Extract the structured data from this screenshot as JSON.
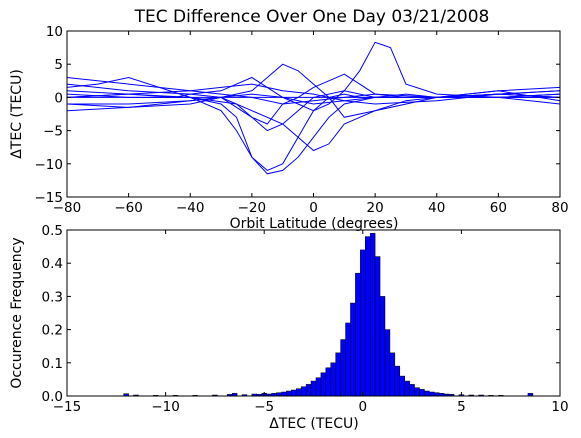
{
  "chart_data": [
    {
      "type": "line",
      "title": "TEC Difference Over One Day 03/21/2008",
      "xlabel": "Orbit Latitude (degrees)",
      "ylabel": "ΔTEC (TECU)",
      "xlim": [
        -80,
        80
      ],
      "ylim": [
        -15,
        10
      ],
      "xticks": [
        -80,
        -60,
        -40,
        -20,
        0,
        20,
        40,
        60,
        80
      ],
      "yticks": [
        10,
        5,
        0,
        -5,
        -10,
        -15
      ],
      "line_color": "#0000ff",
      "grid": false,
      "legend": "none",
      "series": [
        {
          "x": [
            -80,
            -60,
            -45,
            -40,
            -30,
            -25,
            -20,
            -15,
            -10,
            -5,
            0,
            5,
            10,
            15,
            20,
            25,
            30,
            40,
            60,
            80
          ],
          "y": [
            0,
            0.5,
            0,
            0.5,
            1,
            2,
            3,
            1.5,
            0,
            -1,
            -2,
            -1,
            1,
            4,
            8.3,
            7.5,
            2,
            0.5,
            0,
            0.5
          ]
        },
        {
          "x": [
            -80,
            -60,
            -40,
            -30,
            -25,
            -20,
            -15,
            -10,
            -5,
            0,
            5,
            10,
            15,
            20,
            30,
            40,
            60,
            80
          ],
          "y": [
            0.5,
            0,
            0,
            -1,
            -3,
            -9,
            -11,
            -10,
            -6,
            -2,
            0,
            0.5,
            0,
            0,
            0,
            0,
            0,
            0.5
          ]
        },
        {
          "x": [
            -80,
            -60,
            -40,
            -30,
            -25,
            -20,
            -15,
            -10,
            -5,
            0,
            5,
            10,
            20,
            40,
            60,
            80
          ],
          "y": [
            0,
            0,
            0,
            -2,
            -5,
            -9,
            -11.5,
            -11,
            -9,
            -6,
            -3,
            -1,
            0,
            0,
            0,
            0
          ]
        },
        {
          "x": [
            -80,
            -60,
            -40,
            -30,
            -20,
            -15,
            -10,
            -5,
            0,
            5,
            10,
            20,
            40,
            60,
            80
          ],
          "y": [
            -1,
            -1,
            -0.5,
            0,
            1,
            3,
            5,
            4,
            2,
            0,
            -3,
            -2,
            0,
            0,
            0
          ]
        },
        {
          "x": [
            -80,
            -60,
            -40,
            -30,
            -20,
            -15,
            -10,
            -5,
            0,
            5,
            10,
            15,
            20,
            30,
            40,
            60,
            80
          ],
          "y": [
            1,
            0.5,
            0,
            0,
            -3,
            -4,
            -1,
            0,
            1.5,
            2.5,
            3.5,
            2,
            0.5,
            0,
            0,
            0.5,
            1
          ]
        },
        {
          "x": [
            -80,
            -60,
            -40,
            -30,
            -20,
            -10,
            -5,
            0,
            5,
            10,
            20,
            30,
            40,
            60,
            80
          ],
          "y": [
            2,
            1,
            0.5,
            0,
            -2,
            -4,
            -6,
            -8,
            -7,
            -4,
            -2,
            -0.5,
            0,
            0.5,
            1
          ]
        },
        {
          "x": [
            -80,
            -70,
            -60,
            -40,
            -25,
            -20,
            -15,
            -10,
            -5,
            0,
            10,
            20,
            40,
            60,
            80
          ],
          "y": [
            1.5,
            2,
            3,
            0,
            -1,
            -3,
            -5,
            -4,
            -2,
            0,
            1,
            0,
            0,
            0.5,
            0
          ]
        },
        {
          "x": [
            -80,
            -60,
            -40,
            -30,
            -20,
            -10,
            0,
            10,
            20,
            30,
            40,
            60,
            80
          ],
          "y": [
            -1,
            -1.5,
            -1,
            0,
            0.5,
            0,
            -1,
            -0.5,
            0,
            0.5,
            0,
            1,
            -0.5
          ]
        },
        {
          "x": [
            -80,
            -60,
            -40,
            -30,
            -20,
            -10,
            0,
            10,
            20,
            40,
            60,
            80
          ],
          "y": [
            3,
            2,
            1,
            0.5,
            0,
            -1,
            -0.5,
            0,
            0.5,
            0,
            1,
            1.5
          ]
        },
        {
          "x": [
            -80,
            -60,
            -40,
            -30,
            -20,
            -10,
            0,
            10,
            20,
            40,
            60,
            80
          ],
          "y": [
            -2,
            -1.5,
            -0.5,
            0,
            0,
            0,
            0,
            0,
            0,
            0,
            0,
            -1
          ]
        },
        {
          "x": [
            -80,
            -60,
            -40,
            -30,
            -20,
            -10,
            0,
            10,
            20,
            40,
            60,
            80
          ],
          "y": [
            0,
            0.5,
            1,
            1.5,
            2,
            1,
            0.5,
            -0.5,
            -1,
            -0.5,
            0.5,
            0
          ]
        }
      ]
    },
    {
      "type": "bar",
      "title": "",
      "xlabel": "ΔTEC (TECU)",
      "ylabel": "Occurence Frequency",
      "xlim": [
        -15,
        10
      ],
      "ylim": [
        0,
        0.5
      ],
      "xticks": [
        -15,
        -10,
        -5,
        0,
        5,
        10
      ],
      "yticks": [
        0.5,
        0.4,
        0.3,
        0.2,
        0.1,
        0.0
      ],
      "bar_color": "#0000ff",
      "bin_width": 0.25,
      "bins": [
        {
          "x": -12.0,
          "y": 0.007
        },
        {
          "x": -11.5,
          "y": 0.003
        },
        {
          "x": -10.5,
          "y": 0.002
        },
        {
          "x": -9.5,
          "y": 0.002
        },
        {
          "x": -8.5,
          "y": 0.002
        },
        {
          "x": -7.5,
          "y": 0.003
        },
        {
          "x": -6.75,
          "y": 0.005
        },
        {
          "x": -6.5,
          "y": 0.008
        },
        {
          "x": -6.0,
          "y": 0.004
        },
        {
          "x": -5.5,
          "y": 0.006
        },
        {
          "x": -5.25,
          "y": 0.005
        },
        {
          "x": -5.0,
          "y": 0.008
        },
        {
          "x": -4.75,
          "y": 0.006
        },
        {
          "x": -4.5,
          "y": 0.008
        },
        {
          "x": -4.25,
          "y": 0.01
        },
        {
          "x": -4.0,
          "y": 0.012
        },
        {
          "x": -3.75,
          "y": 0.015
        },
        {
          "x": -3.5,
          "y": 0.018
        },
        {
          "x": -3.25,
          "y": 0.022
        },
        {
          "x": -3.0,
          "y": 0.028
        },
        {
          "x": -2.75,
          "y": 0.035
        },
        {
          "x": -2.5,
          "y": 0.045
        },
        {
          "x": -2.25,
          "y": 0.055
        },
        {
          "x": -2.0,
          "y": 0.07
        },
        {
          "x": -1.75,
          "y": 0.085
        },
        {
          "x": -1.5,
          "y": 0.1
        },
        {
          "x": -1.25,
          "y": 0.13
        },
        {
          "x": -1.0,
          "y": 0.17
        },
        {
          "x": -0.75,
          "y": 0.22
        },
        {
          "x": -0.5,
          "y": 0.28
        },
        {
          "x": -0.25,
          "y": 0.37
        },
        {
          "x": 0.0,
          "y": 0.44
        },
        {
          "x": 0.25,
          "y": 0.48
        },
        {
          "x": 0.5,
          "y": 0.49
        },
        {
          "x": 0.75,
          "y": 0.42
        },
        {
          "x": 1.0,
          "y": 0.3
        },
        {
          "x": 1.25,
          "y": 0.2
        },
        {
          "x": 1.5,
          "y": 0.13
        },
        {
          "x": 1.75,
          "y": 0.09
        },
        {
          "x": 2.0,
          "y": 0.06
        },
        {
          "x": 2.25,
          "y": 0.045
        },
        {
          "x": 2.5,
          "y": 0.035
        },
        {
          "x": 2.75,
          "y": 0.025
        },
        {
          "x": 3.0,
          "y": 0.02
        },
        {
          "x": 3.25,
          "y": 0.015
        },
        {
          "x": 3.5,
          "y": 0.012
        },
        {
          "x": 3.75,
          "y": 0.01
        },
        {
          "x": 4.0,
          "y": 0.008
        },
        {
          "x": 4.25,
          "y": 0.006
        },
        {
          "x": 4.5,
          "y": 0.005
        },
        {
          "x": 5.0,
          "y": 0.004
        },
        {
          "x": 5.5,
          "y": 0.003
        },
        {
          "x": 6.0,
          "y": 0.003
        },
        {
          "x": 6.5,
          "y": 0.002
        },
        {
          "x": 7.0,
          "y": 0.002
        },
        {
          "x": 8.5,
          "y": 0.008
        }
      ]
    }
  ]
}
